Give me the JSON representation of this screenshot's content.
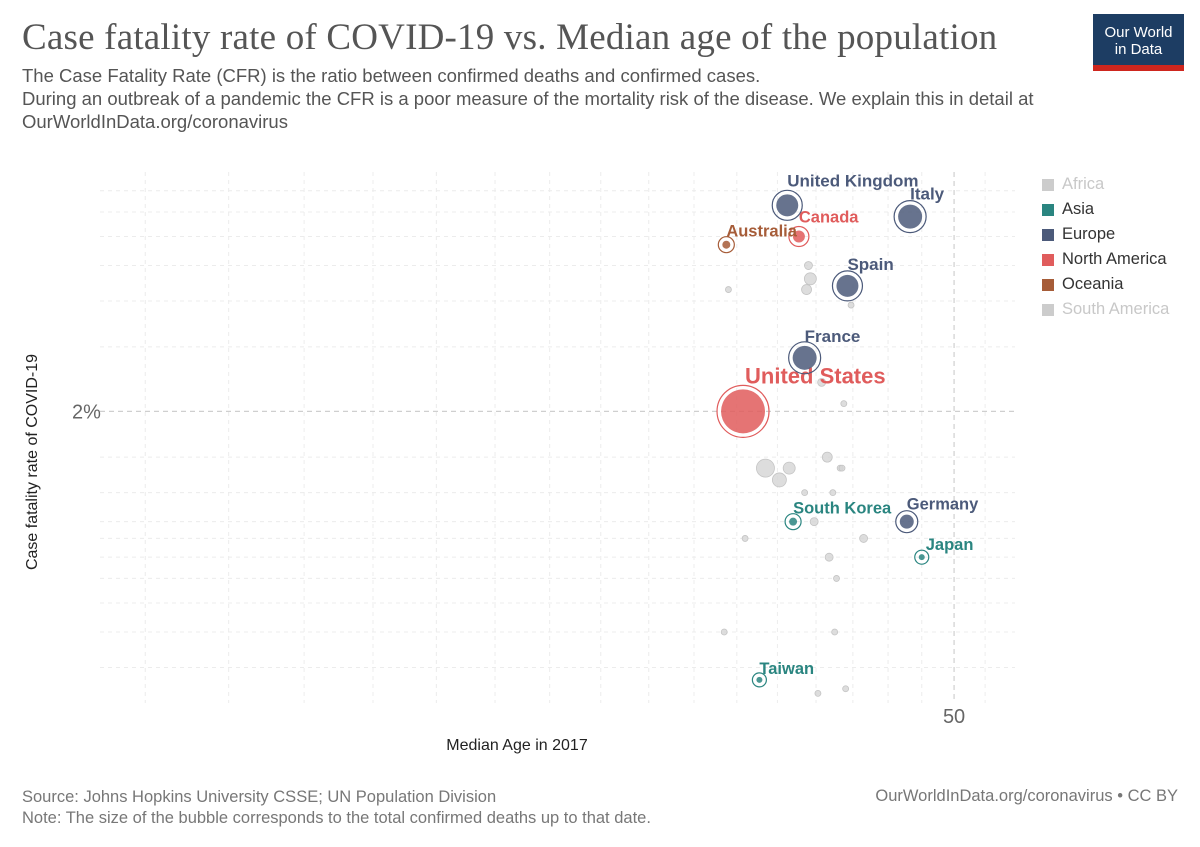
{
  "header": {
    "title": "Case fatality rate of COVID-19 vs. Median age of the population",
    "subtitle": "The Case Fatality Rate (CFR) is the ratio between confirmed deaths and confirmed cases.\n During an outbreak of a pandemic the CFR is a poor measure of the mortality risk of the disease. We explain this in detail at OurWorldInData.org/coronavirus"
  },
  "logo": {
    "line1": "Our World",
    "line2": "in Data"
  },
  "legend": {
    "items": [
      {
        "label": "Africa",
        "color": "#cccccc",
        "text_color": "#c8c8c8"
      },
      {
        "label": "Asia",
        "color": "#2a8580",
        "text_color": "#333333"
      },
      {
        "label": "Europe",
        "color": "#4c5a7a",
        "text_color": "#333333"
      },
      {
        "label": "North America",
        "color": "#e05c5c",
        "text_color": "#333333"
      },
      {
        "label": "Oceania",
        "color": "#a65c38",
        "text_color": "#333333"
      },
      {
        "label": "South America",
        "color": "#cccccc",
        "text_color": "#c8c8c8"
      }
    ]
  },
  "footer": {
    "source": "Source: Johns Hopkins University CSSE; UN Population Division",
    "note": "Note: The size of the bubble corresponds to the total confirmed deaths up to that date.",
    "credit": "OurWorldInData.org/coronavirus • CC BY"
  },
  "chart_data": {
    "type": "scatter",
    "xlabel": "Median Age in 2017",
    "ylabel": "Case fatality rate of COVID-19",
    "x_scale": "log",
    "y_scale": "log",
    "xlim": [
      17,
      54
    ],
    "ylim": [
      0.32,
      9
    ],
    "x_ticks": [
      {
        "value": 50,
        "label": "50"
      }
    ],
    "y_ticks": [
      {
        "value": 2,
        "label": "2%"
      }
    ],
    "grid": true,
    "legend_position": "right",
    "size_note": "bubble size = total confirmed deaths",
    "labeled_points": [
      {
        "name": "United States",
        "region": "North America",
        "x": 38.3,
        "y": 2.0,
        "size": 22
      },
      {
        "name": "United Kingdom",
        "region": "Europe",
        "x": 40.5,
        "y": 7.3,
        "size": 11
      },
      {
        "name": "Canada",
        "region": "North America",
        "x": 41.1,
        "y": 6.0,
        "size": 6
      },
      {
        "name": "Australia",
        "region": "Oceania",
        "x": 37.5,
        "y": 5.7,
        "size": 4
      },
      {
        "name": "Italy",
        "region": "Europe",
        "x": 47.3,
        "y": 6.8,
        "size": 12
      },
      {
        "name": "Spain",
        "region": "Europe",
        "x": 43.7,
        "y": 4.4,
        "size": 11
      },
      {
        "name": "France",
        "region": "Europe",
        "x": 41.4,
        "y": 2.8,
        "size": 12
      },
      {
        "name": "South Korea",
        "region": "Asia",
        "x": 40.8,
        "y": 1.0,
        "size": 4
      },
      {
        "name": "Germany",
        "region": "Europe",
        "x": 47.1,
        "y": 1.0,
        "size": 7
      },
      {
        "name": "Japan",
        "region": "Asia",
        "x": 48.0,
        "y": 0.8,
        "size": 3
      },
      {
        "name": "Taiwan",
        "region": "Asia",
        "x": 39.1,
        "y": 0.37,
        "size": 3
      }
    ],
    "other_points": [
      {
        "region": "Other",
        "x": 39.4,
        "y": 1.4,
        "size": 9
      },
      {
        "region": "Other",
        "x": 40.1,
        "y": 1.3,
        "size": 7
      },
      {
        "region": "Other",
        "x": 40.6,
        "y": 1.4,
        "size": 6
      },
      {
        "region": "Other",
        "x": 41.7,
        "y": 4.6,
        "size": 6
      },
      {
        "region": "Other",
        "x": 41.5,
        "y": 4.3,
        "size": 5
      },
      {
        "name": "",
        "region": "Other",
        "x": 41.6,
        "y": 5.0,
        "size": 4
      },
      {
        "region": "Other",
        "x": 42.6,
        "y": 1.5,
        "size": 5
      },
      {
        "region": "Other",
        "x": 42.3,
        "y": 2.4,
        "size": 4
      },
      {
        "region": "Other",
        "x": 43.3,
        "y": 1.4,
        "size": 3
      },
      {
        "region": "Other",
        "x": 43.4,
        "y": 1.4,
        "size": 3
      },
      {
        "region": "Other",
        "x": 43.5,
        "y": 2.1,
        "size": 3
      },
      {
        "region": "Other",
        "x": 43.9,
        "y": 3.9,
        "size": 3
      },
      {
        "region": "Other",
        "x": 41.9,
        "y": 1.0,
        "size": 4
      },
      {
        "region": "Other",
        "x": 42.7,
        "y": 0.8,
        "size": 4
      },
      {
        "region": "Other",
        "x": 43.1,
        "y": 0.7,
        "size": 3
      },
      {
        "region": "Other",
        "x": 44.6,
        "y": 0.9,
        "size": 4
      },
      {
        "region": "Other",
        "x": 42.9,
        "y": 1.2,
        "size": 3
      },
      {
        "region": "Other",
        "x": 41.4,
        "y": 1.2,
        "size": 3
      },
      {
        "region": "Other",
        "x": 37.6,
        "y": 4.3,
        "size": 3
      },
      {
        "region": "Other",
        "x": 38.4,
        "y": 0.9,
        "size": 3
      },
      {
        "region": "Other",
        "x": 37.4,
        "y": 0.5,
        "size": 3
      },
      {
        "region": "Other",
        "x": 43.0,
        "y": 0.5,
        "size": 3
      },
      {
        "region": "Other",
        "x": 43.6,
        "y": 0.35,
        "size": 3
      },
      {
        "region": "Other",
        "x": 42.1,
        "y": 0.34,
        "size": 3
      }
    ]
  }
}
